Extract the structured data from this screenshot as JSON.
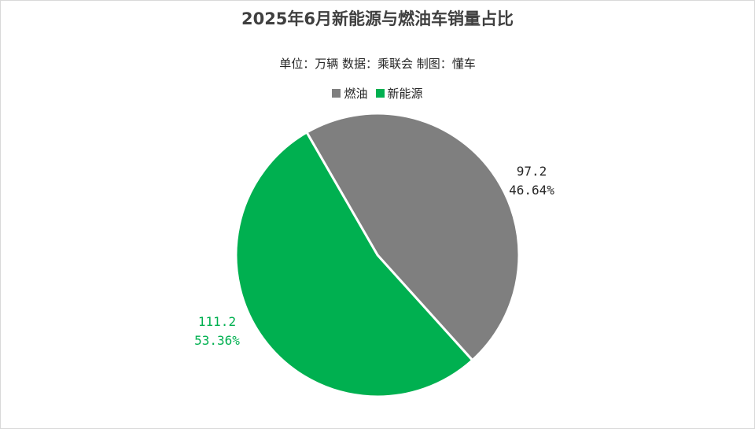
{
  "chart_data": {
    "type": "pie",
    "title": "2025年6月新能源与燃油车销量占比",
    "subtitle": "单位：万辆    数据：乘联会    制图：懂车",
    "legend_position": "top",
    "slices": [
      {
        "name": "燃油",
        "value": 97.2,
        "percent": 46.64,
        "value_label": "97.2",
        "percent_label": "46.64%",
        "color": "#7f7f7f"
      },
      {
        "name": "新能源",
        "value": 111.2,
        "percent": 53.36,
        "value_label": "111.2",
        "percent_label": "53.36%",
        "color": "#00b050"
      }
    ]
  }
}
